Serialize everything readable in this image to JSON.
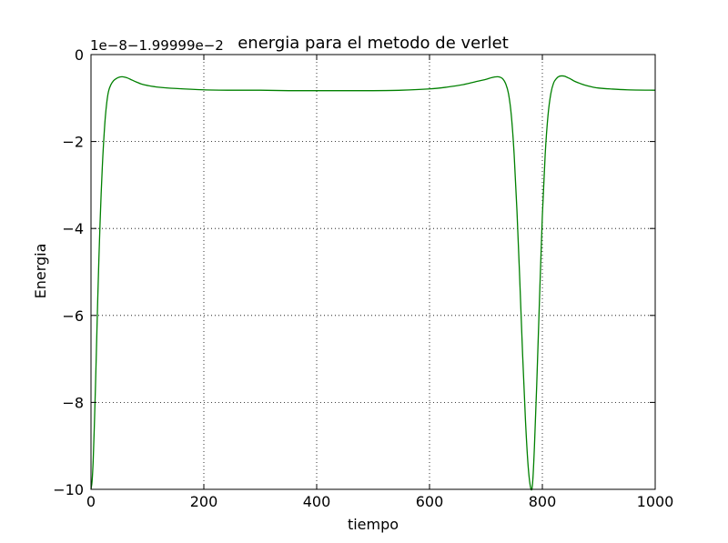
{
  "chart_data": {
    "type": "line",
    "title": "energia para el metodo de verlet",
    "xlabel": "tiempo",
    "ylabel": "Energia",
    "offset_text": "1e−8−1.99999e−2",
    "xlim": [
      0,
      1000
    ],
    "ylim": [
      -10,
      0
    ],
    "xticks": [
      0,
      200,
      400,
      600,
      800,
      1000
    ],
    "xtick_labels": [
      "0",
      "200",
      "400",
      "600",
      "800",
      "1000"
    ],
    "yticks": [
      -10,
      -8,
      -6,
      -4,
      -2,
      0
    ],
    "ytick_labels": [
      "−10",
      "−8",
      "−6",
      "−4",
      "−2",
      "0"
    ],
    "grid": true,
    "series": [
      {
        "color": "#008000",
        "x": [
          0,
          2,
          4,
          6,
          8,
          10,
          12,
          14,
          16,
          18,
          20,
          22,
          25,
          28,
          31,
          35,
          40,
          45,
          50,
          55,
          60,
          65,
          70,
          80,
          90,
          100,
          120,
          150,
          200,
          250,
          300,
          350,
          400,
          450,
          500,
          550,
          600,
          630,
          660,
          680,
          700,
          710,
          720,
          725,
          730,
          735,
          740,
          745,
          750,
          755,
          760,
          765,
          770,
          775,
          780,
          783,
          786,
          790,
          795,
          800,
          805,
          810,
          815,
          820,
          825,
          830,
          835,
          840,
          845,
          850,
          855,
          860,
          870,
          880,
          890,
          900,
          920,
          950,
          1000
        ],
        "y": [
          -10.0,
          -9.8,
          -9.3,
          -8.5,
          -7.6,
          -6.6,
          -5.6,
          -4.7,
          -3.9,
          -3.2,
          -2.6,
          -2.1,
          -1.5,
          -1.1,
          -0.85,
          -0.7,
          -0.6,
          -0.55,
          -0.52,
          -0.51,
          -0.52,
          -0.54,
          -0.57,
          -0.63,
          -0.68,
          -0.71,
          -0.75,
          -0.78,
          -0.81,
          -0.82,
          -0.82,
          -0.83,
          -0.83,
          -0.83,
          -0.83,
          -0.82,
          -0.79,
          -0.75,
          -0.69,
          -0.63,
          -0.57,
          -0.53,
          -0.51,
          -0.52,
          -0.56,
          -0.67,
          -0.9,
          -1.4,
          -2.3,
          -3.6,
          -5.2,
          -6.9,
          -8.4,
          -9.5,
          -10.0,
          -9.8,
          -9.0,
          -7.6,
          -5.6,
          -3.7,
          -2.3,
          -1.4,
          -0.9,
          -0.65,
          -0.55,
          -0.5,
          -0.49,
          -0.5,
          -0.53,
          -0.56,
          -0.6,
          -0.63,
          -0.68,
          -0.72,
          -0.75,
          -0.77,
          -0.79,
          -0.81,
          -0.82
        ]
      }
    ]
  }
}
